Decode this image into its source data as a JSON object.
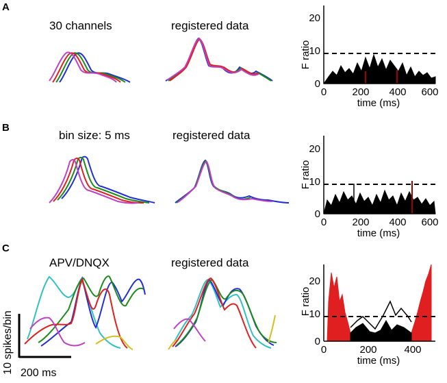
{
  "panels": [
    {
      "letter": "A",
      "left_title": "30 channels",
      "mid_title": "registered data",
      "fplot": {
        "ylabel": "F ratio",
        "xlabel": "time (ms)",
        "yticks": [
          "0",
          "10",
          "20"
        ],
        "xticks": [
          "0",
          "200",
          "400",
          "600"
        ],
        "xrange": [
          0,
          600
        ],
        "yrange": [
          0,
          25
        ],
        "threshold": 9
      }
    },
    {
      "letter": "B",
      "left_title": "bin size: 5 ms",
      "mid_title": "registered data",
      "fplot": {
        "ylabel": "F ratio",
        "xlabel": "time (ms)",
        "yticks": [
          "0",
          "10",
          "20"
        ],
        "xticks": [
          "0",
          "200",
          "400",
          "600"
        ],
        "xrange": [
          0,
          600
        ],
        "yrange": [
          0,
          25
        ],
        "threshold": 9
      }
    },
    {
      "letter": "C",
      "left_title": "APV/DNQX",
      "mid_title": "registered data",
      "fplot": {
        "ylabel": "F ratio",
        "xlabel": "time (ms)",
        "yticks": [
          "0",
          "10",
          "20"
        ],
        "xticks": [
          "0",
          "200",
          "400"
        ],
        "xrange": [
          0,
          500
        ],
        "yrange": [
          0,
          25
        ],
        "threshold": 9
      }
    }
  ],
  "scale_bar": {
    "vertical_label": "10 spikes/bin",
    "horizontal_label": "200 ms"
  },
  "colors": {
    "blue": "#1f2fd6",
    "green": "#1a8a1a",
    "red": "#e02020",
    "magenta": "#c040c0",
    "cyan": "#30c0c0",
    "yellow": "#d0c020",
    "black": "#000000",
    "darkred": "#a00000"
  }
}
